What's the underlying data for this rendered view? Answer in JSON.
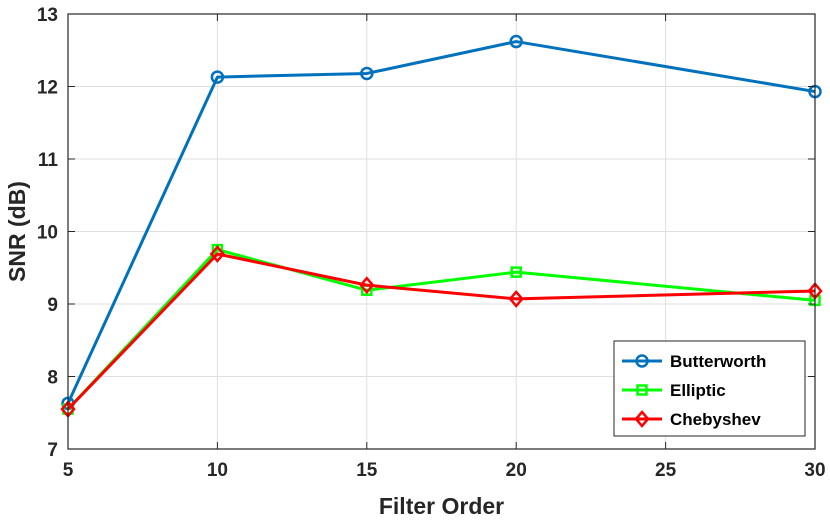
{
  "chart_data": {
    "type": "line",
    "xlabel": "Filter Order",
    "ylabel": "SNR (dB)",
    "xlim": [
      5,
      30
    ],
    "ylim": [
      7,
      13
    ],
    "xticks": [
      5,
      10,
      15,
      20,
      25,
      30
    ],
    "yticks": [
      7,
      8,
      9,
      10,
      11,
      12,
      13
    ],
    "grid": true,
    "legend_position": "bottom-right",
    "x": [
      5,
      10,
      15,
      20,
      30
    ],
    "series": [
      {
        "name": "Butterworth",
        "values": [
          7.63,
          12.13,
          12.18,
          12.62,
          11.93
        ],
        "color": "#0072BD",
        "marker": "circle"
      },
      {
        "name": "Elliptic",
        "values": [
          7.55,
          9.75,
          9.19,
          9.44,
          9.05
        ],
        "color": "#00FF00",
        "marker": "square"
      },
      {
        "name": "Chebyshev",
        "values": [
          7.55,
          9.69,
          9.26,
          9.07,
          9.18
        ],
        "color": "#FF0000",
        "marker": "diamond"
      }
    ]
  }
}
